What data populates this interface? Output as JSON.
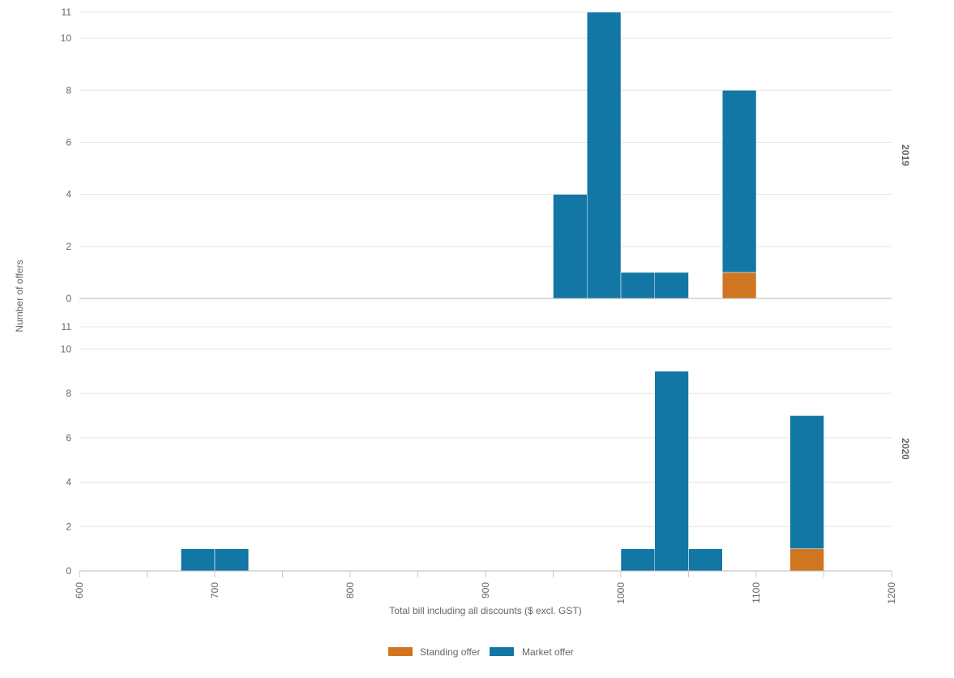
{
  "chart_data": {
    "type": "bar",
    "subtype": "faceted stacked histogram",
    "xlabel": "Total bill including all discounts ($ excl. GST)",
    "ylabel": "Number of offers",
    "xlim": [
      600,
      1200
    ],
    "ylim": [
      0,
      11
    ],
    "x_ticks": [
      600,
      700,
      800,
      900,
      1000,
      1100,
      1200
    ],
    "y_ticks": [
      0,
      2,
      4,
      6,
      8,
      10,
      11
    ],
    "bin_width": 25,
    "grid": "horizontal",
    "legend_position": "bottom",
    "colors": {
      "standing": "#D07620",
      "market": "#1277A5"
    },
    "series_names": [
      "Standing offer",
      "Market offer"
    ],
    "facets": [
      {
        "label": "2019",
        "bins": [
          {
            "x0": 950,
            "x1": 975,
            "standing": 0,
            "market": 4
          },
          {
            "x0": 975,
            "x1": 1000,
            "standing": 0,
            "market": 11
          },
          {
            "x0": 1000,
            "x1": 1025,
            "standing": 0,
            "market": 1
          },
          {
            "x0": 1025,
            "x1": 1050,
            "standing": 0,
            "market": 1
          },
          {
            "x0": 1075,
            "x1": 1100,
            "standing": 1,
            "market": 7
          }
        ]
      },
      {
        "label": "2020",
        "bins": [
          {
            "x0": 675,
            "x1": 700,
            "standing": 0,
            "market": 1
          },
          {
            "x0": 700,
            "x1": 725,
            "standing": 0,
            "market": 1
          },
          {
            "x0": 1000,
            "x1": 1025,
            "standing": 0,
            "market": 1
          },
          {
            "x0": 1025,
            "x1": 1050,
            "standing": 0,
            "market": 9
          },
          {
            "x0": 1050,
            "x1": 1075,
            "standing": 0,
            "market": 1
          },
          {
            "x0": 1125,
            "x1": 1150,
            "standing": 1,
            "market": 6
          }
        ]
      }
    ]
  }
}
